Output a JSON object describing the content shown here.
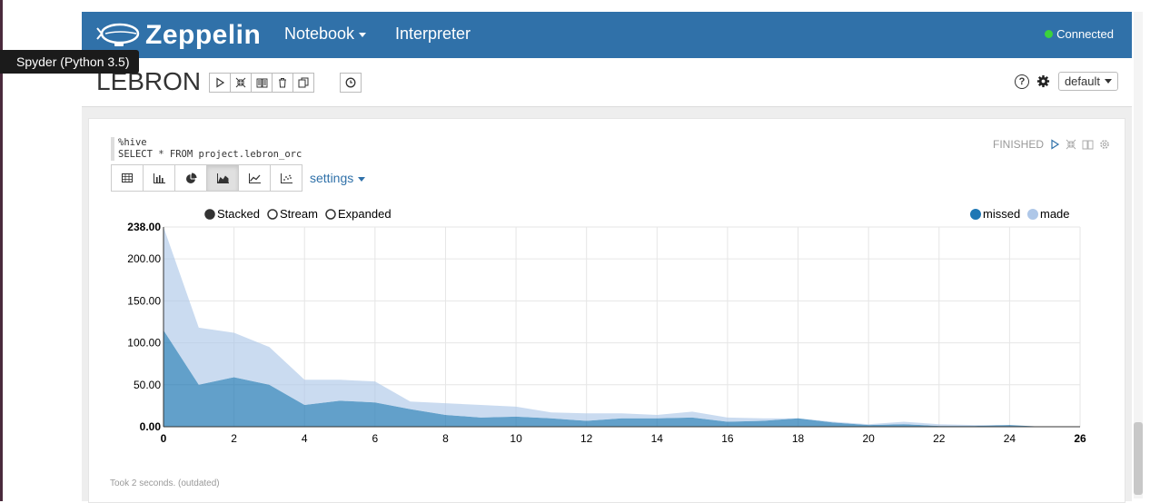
{
  "navbar": {
    "brand": "Zeppelin",
    "notebook_label": "Notebook",
    "interpreter_label": "Interpreter",
    "status": "Connected",
    "status_color": "#3bd23b",
    "color": "#3071a9"
  },
  "tooltip": "Spyder (Python 3.5)",
  "note": {
    "title": "LEBRON",
    "toolbar_icons": [
      "run-all-icon",
      "collapse-code-icon",
      "notebook-icon",
      "trash-icon",
      "clone-icon"
    ],
    "scheduler_icon": "clock-icon",
    "interpreter_binding": "default"
  },
  "paragraph": {
    "code_line1": "%hive",
    "code_line2": "SELECT * FROM project.lebron_orc",
    "status": "FINISHED",
    "viz_buttons": [
      "table",
      "bar-chart",
      "pie-chart",
      "area-chart",
      "line-chart",
      "scatter-chart"
    ],
    "active_viz": "area-chart",
    "settings_label": "settings",
    "footer": "Took 2 seconds. (outdated)"
  },
  "chart_data": {
    "type": "area",
    "stacked": true,
    "style_options": [
      "Stacked",
      "Stream",
      "Expanded"
    ],
    "selected_style": "Stacked",
    "legend_position": "top-right",
    "x": [
      0,
      1,
      2,
      3,
      4,
      5,
      6,
      7,
      8,
      9,
      10,
      11,
      12,
      13,
      14,
      15,
      16,
      17,
      18,
      19,
      20,
      21,
      22,
      23,
      24,
      25,
      26
    ],
    "series": [
      {
        "name": "missed",
        "color": "#1f77b4",
        "values": [
          115,
          50,
          59,
          50,
          26,
          31,
          29,
          21,
          14,
          11,
          12,
          10,
          7,
          10,
          10,
          11,
          6,
          7,
          10,
          5,
          2,
          3,
          1,
          1,
          2,
          0,
          0
        ]
      },
      {
        "name": "made",
        "color": "#aec7e8",
        "values": [
          123,
          68,
          53,
          45,
          30,
          25,
          25,
          9,
          14,
          15,
          12,
          7,
          9,
          6,
          4,
          7,
          5,
          3,
          0,
          1,
          1,
          3,
          2,
          1,
          0,
          0,
          0
        ]
      }
    ],
    "xlim": [
      0,
      26
    ],
    "ylim": [
      0,
      238
    ],
    "x_ticks": [
      "0",
      "2",
      "4",
      "6",
      "8",
      "10",
      "12",
      "14",
      "16",
      "18",
      "20",
      "22",
      "24",
      "26"
    ],
    "y_ticks": [
      "0.00",
      "50.00",
      "100.00",
      "150.00",
      "200.00",
      "238.00"
    ],
    "grid": true
  }
}
